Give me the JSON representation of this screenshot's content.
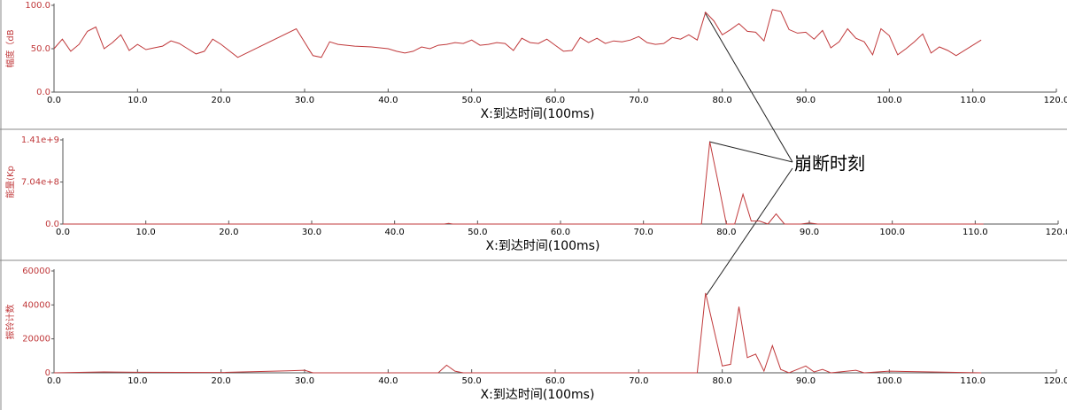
{
  "chart_data": [
    {
      "type": "line",
      "ylabel": "幅度（dB",
      "xlabel": "X:到达时间(100ms)",
      "color": "#c0393b",
      "x": [
        0,
        1,
        2,
        3,
        4,
        5,
        6,
        7,
        8,
        9,
        10,
        11,
        12,
        13,
        14,
        15,
        16,
        17,
        18,
        19,
        20,
        22,
        29,
        31,
        32,
        33,
        34,
        36,
        38,
        40,
        41,
        42,
        43,
        44,
        45,
        46,
        47,
        48,
        49,
        50,
        51,
        52,
        53,
        54,
        55,
        56,
        57,
        58,
        59,
        60,
        61,
        62,
        63,
        64,
        65,
        66,
        67,
        68,
        69,
        70,
        71,
        72,
        73,
        74,
        75,
        76,
        77,
        78,
        79,
        80,
        81,
        82,
        83,
        84,
        85,
        86,
        87,
        88,
        89,
        90,
        91,
        92,
        93,
        94,
        95,
        96,
        97,
        98,
        99,
        100,
        101,
        102,
        103,
        104,
        105,
        106,
        107,
        108,
        111
      ],
      "values": [
        50,
        61,
        47,
        55,
        70,
        75,
        50,
        57,
        66,
        48,
        55,
        49,
        51,
        53,
        59,
        56,
        50,
        44,
        47,
        61,
        55,
        40,
        73,
        42,
        40,
        58,
        55,
        53,
        52,
        50,
        47,
        45,
        47,
        52,
        50,
        54,
        55,
        57,
        56,
        60,
        54,
        55,
        57,
        56,
        48,
        62,
        57,
        56,
        61,
        54,
        47,
        48,
        63,
        57,
        62,
        56,
        59,
        58,
        60,
        64,
        57,
        55,
        56,
        63,
        61,
        66,
        60,
        92,
        82,
        66,
        72,
        79,
        70,
        69,
        59,
        95,
        93,
        72,
        68,
        69,
        61,
        71,
        51,
        58,
        73,
        62,
        58,
        43,
        73,
        65,
        43,
        50,
        58,
        67,
        45,
        52,
        48,
        42,
        60
      ],
      "xlim": [
        0,
        120
      ],
      "ylim": [
        0,
        100
      ],
      "xticks": [
        {
          "value": 0,
          "label": "0.0"
        },
        {
          "value": 10,
          "label": "10.0"
        },
        {
          "value": 20,
          "label": "20.0"
        },
        {
          "value": 30,
          "label": "30.0"
        },
        {
          "value": 40,
          "label": "40.0"
        },
        {
          "value": 50,
          "label": "50.0"
        },
        {
          "value": 60,
          "label": "60.0"
        },
        {
          "value": 70,
          "label": "70.0"
        },
        {
          "value": 80,
          "label": "80.0"
        },
        {
          "value": 90,
          "label": "90.0"
        },
        {
          "value": 100,
          "label": "100.0"
        },
        {
          "value": 110,
          "label": "110.0"
        },
        {
          "value": 120,
          "label": "120.0"
        }
      ],
      "yticks": [
        {
          "value": 0,
          "label": "0.0"
        },
        {
          "value": 50,
          "label": "50.0"
        },
        {
          "value": 100,
          "label": "100.0"
        }
      ]
    },
    {
      "type": "line",
      "ylabel": "能量(Kp",
      "xlabel": "X:到达时间(100ms)",
      "color": "#c0393b",
      "x": [
        0,
        46,
        46.5,
        47,
        77,
        78,
        79,
        80,
        81,
        82,
        83,
        84,
        85,
        86,
        87,
        89,
        90,
        91,
        111
      ],
      "values": [
        0,
        0,
        10000000,
        0,
        0,
        1380000000,
        700000000,
        0,
        0,
        500000000,
        50000000,
        50000000,
        0,
        170000000,
        0,
        0,
        20000000,
        0,
        0
      ],
      "xlim": [
        0,
        120
      ],
      "ylim": [
        0,
        1410000000
      ],
      "xticks": [
        {
          "value": 0,
          "label": "0.0"
        },
        {
          "value": 10,
          "label": "10.0"
        },
        {
          "value": 20,
          "label": "20.0"
        },
        {
          "value": 30,
          "label": "30.0"
        },
        {
          "value": 40,
          "label": "40.0"
        },
        {
          "value": 50,
          "label": "50.0"
        },
        {
          "value": 60,
          "label": "60.0"
        },
        {
          "value": 70,
          "label": "70.0"
        },
        {
          "value": 80,
          "label": "80.0"
        },
        {
          "value": 90,
          "label": "90.0"
        },
        {
          "value": 100,
          "label": "100.0"
        },
        {
          "value": 110,
          "label": "110.0"
        },
        {
          "value": 120,
          "label": "120.0"
        }
      ],
      "yticks": [
        {
          "value": 0,
          "label": "0.0"
        },
        {
          "value": 704000000,
          "label": "7.04e+8"
        },
        {
          "value": 1410000000,
          "label": "1.41e+9"
        }
      ]
    },
    {
      "type": "line",
      "ylabel": "振铃计数",
      "xlabel": "X:到达时间(100ms)",
      "color": "#c0393b",
      "x": [
        0,
        6,
        10,
        20,
        28,
        30,
        31,
        46,
        47,
        48,
        49,
        77,
        78,
        80,
        81,
        82,
        83,
        84,
        85,
        86,
        87,
        88,
        90,
        91,
        92,
        93,
        96,
        97,
        100,
        111
      ],
      "values": [
        0,
        500,
        300,
        200,
        1200,
        1500,
        0,
        0,
        4500,
        1000,
        0,
        0,
        47000,
        4000,
        5000,
        39000,
        9000,
        11000,
        1000,
        16000,
        2000,
        0,
        4000,
        500,
        2000,
        0,
        1500,
        0,
        1000,
        0
      ],
      "xlim": [
        0,
        120
      ],
      "ylim": [
        0,
        60000
      ],
      "xticks": [
        {
          "value": 0,
          "label": "0.0"
        },
        {
          "value": 10,
          "label": "10.0"
        },
        {
          "value": 20,
          "label": "20.0"
        },
        {
          "value": 30,
          "label": "30.0"
        },
        {
          "value": 40,
          "label": "40.0"
        },
        {
          "value": 50,
          "label": "50.0"
        },
        {
          "value": 60,
          "label": "60.0"
        },
        {
          "value": 70,
          "label": "70.0"
        },
        {
          "value": 80,
          "label": "80.0"
        },
        {
          "value": 90,
          "label": "90.0"
        },
        {
          "value": 100,
          "label": "100.0"
        },
        {
          "value": 110,
          "label": "110.0"
        },
        {
          "value": 120,
          "label": "120.0"
        }
      ],
      "yticks": [
        0,
        20000,
        40000,
        60000
      ]
    }
  ],
  "annotation": "崩断时刻"
}
